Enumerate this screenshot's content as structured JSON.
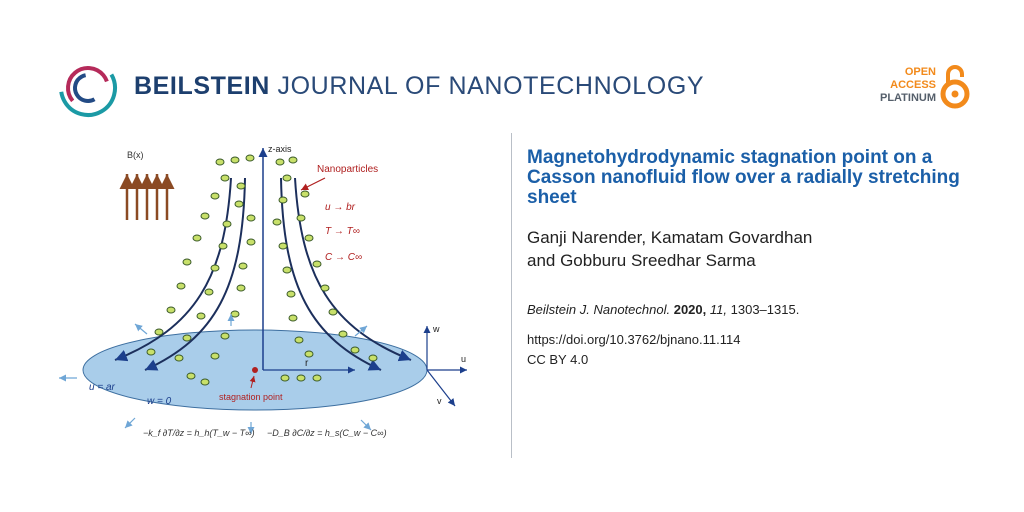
{
  "header": {
    "journal_bold": "BEILSTEIN",
    "journal_rest": "JOURNAL OF NANOTECHNOLOGY",
    "oa_open": "OPEN",
    "oa_access": "ACCESS",
    "oa_platinum": "PLATINUM"
  },
  "article": {
    "title": "Magnetohydrodynamic stagnation point on a Casson nanofluid flow over a radially stretching sheet",
    "authors_line1": "Ganji Narender, Kamatam Govardhan",
    "authors_line2": "and Gobburu Sreedhar Sarma",
    "citation_journal": "Beilstein J. Nanotechnol.",
    "citation_year": "2020,",
    "citation_volume": "11,",
    "citation_pages": "1303–1315.",
    "doi": "https://doi.org/10.3762/bjnano.11.114",
    "license": "CC BY 4.0"
  },
  "figure": {
    "bx_label": "B(x)",
    "zaxis_label": "z-axis",
    "nanoparticles_label": "Nanoparticles",
    "eq_u_br": "u → br",
    "eq_T": "T → T∞",
    "eq_C": "C → C∞",
    "r_label": "r",
    "u_ar": "u = ar",
    "w0": "w = 0",
    "stagnation_label": "stagnation point",
    "w_label": "w",
    "u_label": "u",
    "v_label": "v",
    "bc_left": "−k_f ∂T/∂z = h_h(T_w − T∞)",
    "bc_right": "−D_B ∂C/∂z = h_s(C_w − C∞)",
    "colors": {
      "disk": "#a9cdea",
      "disk_edge": "#3d6fa0",
      "particle_fill": "#c8e06a",
      "particle_edge": "#3b5b2a",
      "arrow_brown": "#8b4a24",
      "label_red": "#b02020",
      "axis_blue": "#1c3f8c"
    }
  }
}
